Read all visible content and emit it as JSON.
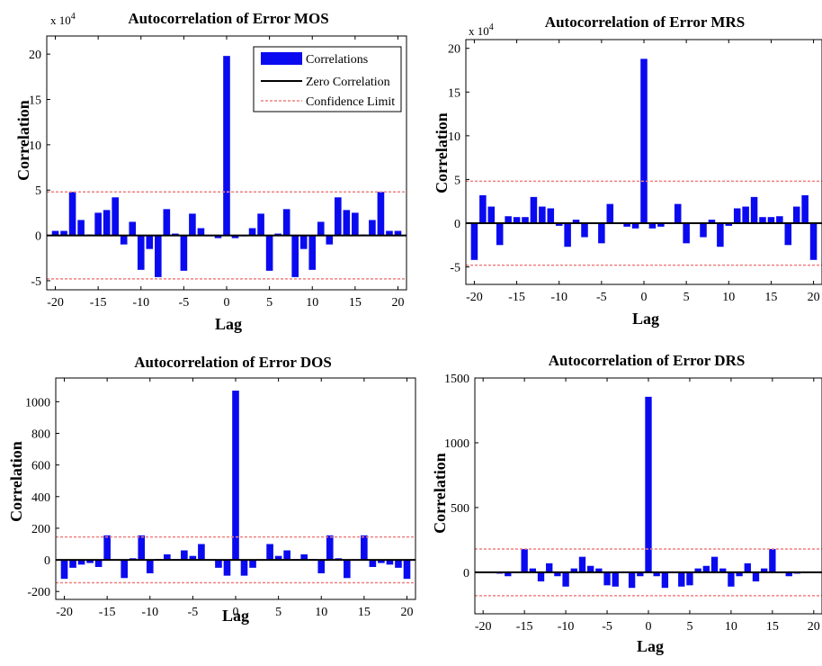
{
  "legend": {
    "correlations": "Correlations",
    "zero": "Zero Correlation",
    "confidence": "Confidence Limit"
  },
  "colors": {
    "bars": "#0a0af0",
    "confidence": "#f08080",
    "zero": "#000000"
  },
  "chart_data": [
    {
      "type": "bar",
      "title": "Autocorrelation of Error MOS",
      "xlabel": "Lag",
      "ylabel": "Correlation",
      "multiplier_label": "x 10",
      "multiplier_exp": "4",
      "xlim": [
        -21,
        21
      ],
      "ylim": [
        -6,
        22
      ],
      "xticks": [
        -20,
        -15,
        -10,
        -5,
        0,
        5,
        10,
        15,
        20
      ],
      "yticks": [
        -5,
        0,
        5,
        10,
        15,
        20
      ],
      "confidence": 4.8,
      "legend": "top-right",
      "x": [
        -20,
        -19,
        -18,
        -17,
        -16,
        -15,
        -14,
        -13,
        -12,
        -11,
        -10,
        -9,
        -8,
        -7,
        -6,
        -5,
        -4,
        -3,
        -2,
        -1,
        0,
        1,
        2,
        3,
        4,
        5,
        6,
        7,
        8,
        9,
        10,
        11,
        12,
        13,
        14,
        15,
        16,
        17,
        18,
        19,
        20
      ],
      "values": [
        0.5,
        0.5,
        4.8,
        1.7,
        0.1,
        2.5,
        2.8,
        4.2,
        -1.0,
        1.5,
        -3.8,
        -1.5,
        -4.6,
        2.9,
        0.2,
        -3.9,
        2.4,
        0.8,
        -0.1,
        -0.3,
        19.8,
        -0.3,
        -0.1,
        0.8,
        2.4,
        -3.9,
        0.2,
        2.9,
        -4.6,
        -1.5,
        -3.8,
        1.5,
        -1.0,
        4.2,
        2.8,
        2.5,
        0.1,
        1.7,
        4.8,
        0.5,
        0.5
      ]
    },
    {
      "type": "bar",
      "title": "Autocorrelation of Error MRS",
      "xlabel": "Lag",
      "ylabel": "Correlation",
      "multiplier_label": "x 10",
      "multiplier_exp": "4",
      "xlim": [
        -21,
        21
      ],
      "ylim": [
        -7,
        21
      ],
      "xticks": [
        -20,
        -15,
        -10,
        -5,
        0,
        5,
        10,
        15,
        20
      ],
      "yticks": [
        -5,
        0,
        5,
        10,
        15,
        20
      ],
      "confidence": 4.8,
      "legend": "none",
      "x": [
        -20,
        -19,
        -18,
        -17,
        -16,
        -15,
        -14,
        -13,
        -12,
        -11,
        -10,
        -9,
        -8,
        -7,
        -6,
        -5,
        -4,
        -3,
        -2,
        -1,
        0,
        1,
        2,
        3,
        4,
        5,
        6,
        7,
        8,
        9,
        10,
        11,
        12,
        13,
        14,
        15,
        16,
        17,
        18,
        19,
        20
      ],
      "values": [
        -4.2,
        3.2,
        1.9,
        -2.5,
        0.8,
        0.7,
        0.7,
        3.0,
        1.9,
        1.7,
        -0.3,
        -2.7,
        0.4,
        -1.6,
        0.1,
        -2.3,
        2.2,
        0.1,
        -0.4,
        -0.6,
        18.8,
        -0.6,
        -0.4,
        0.1,
        2.2,
        -2.3,
        0.1,
        -1.6,
        0.4,
        -2.7,
        -0.3,
        1.7,
        1.9,
        3.0,
        0.7,
        0.7,
        0.8,
        -2.5,
        1.9,
        3.2,
        -4.2
      ]
    },
    {
      "type": "bar",
      "title": "Autocorrelation of Error DOS",
      "xlabel": "Lag",
      "ylabel": "Correlation",
      "xlim": [
        -21,
        21
      ],
      "ylim": [
        -250,
        1150
      ],
      "xticks": [
        -20,
        -15,
        -10,
        -5,
        0,
        5,
        10,
        15,
        20
      ],
      "yticks": [
        -200,
        0,
        200,
        400,
        600,
        800,
        1000
      ],
      "confidence": 145,
      "legend": "none",
      "x": [
        -20,
        -19,
        -18,
        -17,
        -16,
        -15,
        -14,
        -13,
        -12,
        -11,
        -10,
        -9,
        -8,
        -7,
        -6,
        -5,
        -4,
        -3,
        -2,
        -1,
        0,
        1,
        2,
        3,
        4,
        5,
        6,
        7,
        8,
        9,
        10,
        11,
        12,
        13,
        14,
        15,
        16,
        17,
        18,
        19,
        20
      ],
      "values": [
        -120,
        -50,
        -30,
        -20,
        -45,
        155,
        -5,
        -115,
        10,
        155,
        -85,
        5,
        35,
        5,
        60,
        25,
        100,
        -5,
        -50,
        -100,
        1070,
        -100,
        -50,
        -5,
        100,
        25,
        60,
        5,
        35,
        5,
        -85,
        155,
        10,
        -115,
        -5,
        155,
        -45,
        -20,
        -30,
        -50,
        -120
      ]
    },
    {
      "type": "bar",
      "title": "Autocorrelation of Error DRS",
      "xlabel": "Lag",
      "ylabel": "Correlation",
      "xlim": [
        -21,
        21
      ],
      "ylim": [
        -320,
        1500
      ],
      "xticks": [
        -20,
        -15,
        -10,
        -5,
        0,
        5,
        10,
        15,
        20
      ],
      "yticks": [
        0,
        500,
        1000,
        1500
      ],
      "confidence": 180,
      "legend": "none",
      "x": [
        -20,
        -19,
        -18,
        -17,
        -16,
        -15,
        -14,
        -13,
        -12,
        -11,
        -10,
        -9,
        -8,
        -7,
        -6,
        -5,
        -4,
        -3,
        -2,
        -1,
        0,
        1,
        2,
        3,
        4,
        5,
        6,
        7,
        8,
        9,
        10,
        11,
        12,
        13,
        14,
        15,
        16,
        17,
        18,
        19,
        20
      ],
      "values": [
        0,
        -5,
        -10,
        -30,
        -5,
        180,
        30,
        -70,
        70,
        -30,
        -110,
        30,
        120,
        50,
        30,
        -100,
        -110,
        0,
        -120,
        -30,
        1355,
        -30,
        -120,
        0,
        -110,
        -100,
        30,
        50,
        120,
        30,
        -110,
        -30,
        70,
        -70,
        30,
        180,
        -5,
        -30,
        -10,
        -5,
        0
      ]
    }
  ]
}
